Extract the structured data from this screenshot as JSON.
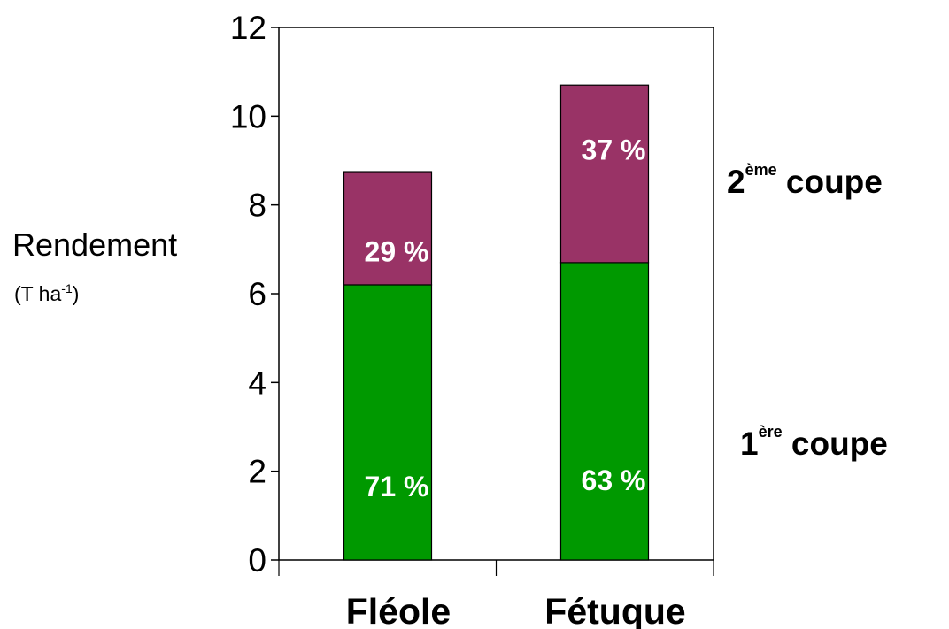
{
  "chart_data": {
    "type": "bar",
    "stacked": true,
    "categories": [
      "Fléole",
      "Fétuque"
    ],
    "series": [
      {
        "name": "1ère coupe",
        "values": [
          6.2,
          6.7
        ],
        "labels": [
          "71 %",
          "63 %"
        ],
        "color": "#009900"
      },
      {
        "name": "2ème coupe",
        "values": [
          2.55,
          4.0
        ],
        "labels": [
          "29 %",
          "37 %"
        ],
        "color": "#993366"
      }
    ],
    "ylabel": "Rendement",
    "ylabel_unit": {
      "base": "(T ha",
      "sup": "-1",
      "end": ")"
    },
    "ylim": [
      0,
      12
    ],
    "yticks": [
      "0",
      "2",
      "4",
      "6",
      "8",
      "10",
      "12"
    ],
    "legend_labels": [
      {
        "num": "2",
        "sup": "ème",
        "word": " coupe"
      },
      {
        "num": "1",
        "sup": "ère",
        "word": " coupe"
      }
    ],
    "grid": false
  }
}
